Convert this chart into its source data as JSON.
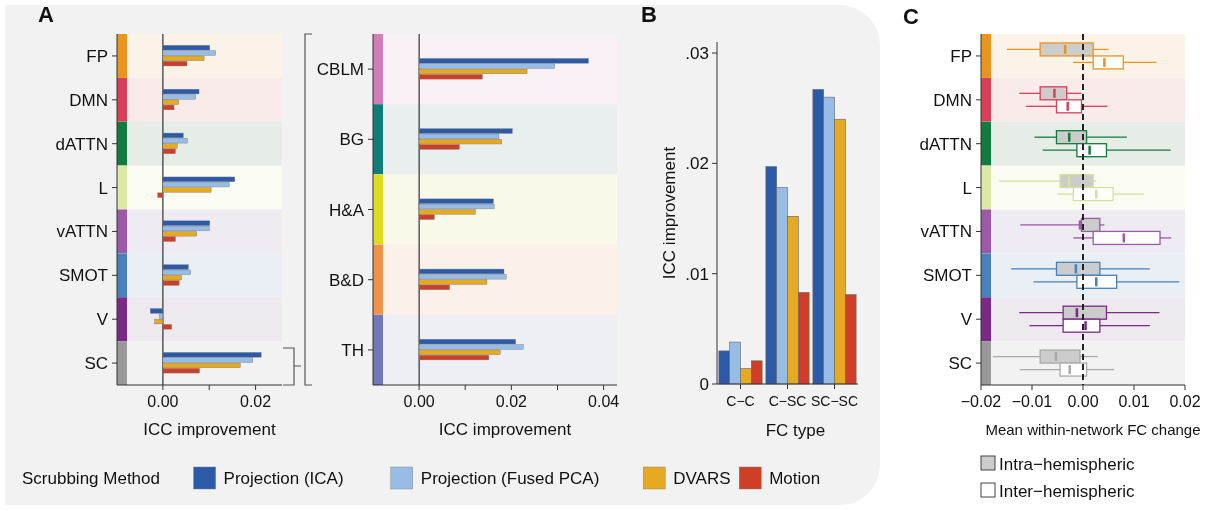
{
  "chart_data": [
    {
      "type": "bar",
      "title": "A",
      "orientation": "horizontal",
      "categories": [
        "FP",
        "DMN",
        "dATTN",
        "L",
        "vATTN",
        "SMOT",
        "V",
        "SC"
      ],
      "xlabel": "ICC improvement",
      "xlim": [
        -0.0099,
        0.0257
      ],
      "xticks": [
        {
          "value": 0,
          "label": "0.00"
        },
        {
          "value": 0.01,
          "label": null
        },
        {
          "value": 0.02,
          "label": "0.02"
        }
      ],
      "legend": "bottom",
      "legend_title": "Scrubbing Method",
      "ref_lines": [
        {
          "axis": "x",
          "value": 0,
          "line_style": "solid",
          "color": "#333333"
        }
      ],
      "series": [
        {
          "name": "Projection (ICA)",
          "color": "#2b5aa8",
          "values": [
            0.0101,
            0.0078,
            0.0044,
            0.0155,
            0.0101,
            0.0055,
            -0.0027,
            0.0212
          ]
        },
        {
          "name": "Projection (Fused PCA)",
          "color": "#97bde6",
          "values": [
            0.0114,
            0.0071,
            0.0053,
            0.0143,
            0.01,
            0.006,
            -0.0008,
            0.0194
          ]
        },
        {
          "name": "DVARS",
          "color": "#e6a922",
          "values": [
            0.0089,
            0.0034,
            0.0031,
            0.0104,
            0.0073,
            0.004,
            -0.0018,
            0.0167
          ]
        },
        {
          "name": "Motion",
          "color": "#cf3f27",
          "values": [
            0.0052,
            0.0024,
            0.0027,
            -0.0011,
            0.0027,
            0.0035,
            0.0019,
            0.0079
          ]
        }
      ]
    },
    {
      "type": "bar",
      "orientation": "horizontal",
      "categories": [
        "CBLM",
        "BG",
        "H&A",
        "B&D",
        "TH"
      ],
      "xlabel": "ICC improvement",
      "xlim": [
        -0.01,
        0.0429
      ],
      "xticks": [
        {
          "value": 0,
          "label": "0.00"
        },
        {
          "value": 0.01,
          "label": null
        },
        {
          "value": 0.02,
          "label": "0.02"
        },
        {
          "value": 0.03,
          "label": null
        },
        {
          "value": 0.04,
          "label": "0.04"
        }
      ],
      "ref_lines": [
        {
          "axis": "x",
          "value": 0,
          "line_style": "solid",
          "color": "#333333"
        }
      ],
      "series": [
        {
          "color": "#2b5aa8",
          "values": [
            0.0367,
            0.0202,
            0.0161,
            0.0184,
            0.0209
          ]
        },
        {
          "color": "#97bde6",
          "values": [
            0.0294,
            0.0173,
            0.0163,
            0.0189,
            0.0226
          ]
        },
        {
          "color": "#e6a922",
          "values": [
            0.0234,
            0.0179,
            0.0122,
            0.0147,
            0.0176
          ]
        },
        {
          "color": "#cf3f27",
          "values": [
            0.0137,
            0.0087,
            0.0033,
            0.0066,
            0.0151
          ]
        }
      ]
    },
    {
      "type": "bar",
      "title": "B",
      "categories": [
        "C−C",
        "C−SC",
        "SC−SC"
      ],
      "xlabel": "FC type",
      "ylabel": "ICC improvement",
      "ylim": [
        0,
        0.031
      ],
      "yticks": [
        {
          "value": 0,
          "label": "0"
        },
        {
          "value": 0.01,
          "label": ".01"
        },
        {
          "value": 0.02,
          "label": ".02"
        },
        {
          "value": 0.03,
          "label": ".03"
        }
      ],
      "series": [
        {
          "color": "#2b5aa8",
          "values": [
            0.003,
            0.0197,
            0.0267
          ]
        },
        {
          "color": "#97bde6",
          "values": [
            0.0038,
            0.0178,
            0.026
          ]
        },
        {
          "color": "#e6a922",
          "values": [
            0.0014,
            0.0152,
            0.024
          ]
        },
        {
          "color": "#cf3f27",
          "values": [
            0.0021,
            0.0083,
            0.0081
          ]
        }
      ]
    },
    {
      "type": "box",
      "title": "C",
      "orientation": "horizontal",
      "categories": [
        "FP",
        "DMN",
        "dATTN",
        "L",
        "vATTN",
        "SMOT",
        "V",
        "SC"
      ],
      "xlabel": "Mean within-network FC change",
      "xlim": [
        -0.02,
        0.02
      ],
      "xticks": [
        {
          "value": -0.02,
          "label": "−0.02"
        },
        {
          "value": -0.01,
          "label": "−0.01"
        },
        {
          "value": 0,
          "label": "0.00"
        },
        {
          "value": 0.01,
          "label": "0.01"
        },
        {
          "value": 0.02,
          "label": "0.02"
        }
      ],
      "legend": "bottom left",
      "ref_lines": [
        {
          "axis": "x",
          "value": 0,
          "line_style": "dashed",
          "color": "#222222"
        }
      ],
      "series": [
        {
          "name": "Intra−hemispheric",
          "color": "#cccccc",
          "colors": [
            "#e8951f",
            "#d6405a",
            "#137b3f",
            "#d4e29a",
            "#9a5aa8",
            "#4682b8",
            "#7a2a86",
            "#aaaaaa"
          ],
          "boxes": [
            {
              "low": -0.0149,
              "q1": -0.0084,
              "median": -0.0035,
              "q3": 0.002,
              "high": 0.005
            },
            {
              "low": -0.0125,
              "q1": -0.0084,
              "median": -0.0056,
              "q3": -0.0032,
              "high": -0.0003
            },
            {
              "low": -0.0095,
              "q1": -0.0052,
              "median": -0.0027,
              "q3": 0.0007,
              "high": 0.0086
            },
            {
              "low": -0.0164,
              "q1": -0.0045,
              "median": -0.0027,
              "q3": 0.002,
              "high": 0.0026
            },
            {
              "low": -0.0123,
              "q1": -0.0003,
              "median": -0.0006,
              "q3": 0.0033,
              "high": 0.0042
            },
            {
              "low": -0.0141,
              "q1": -0.0052,
              "median": -0.0014,
              "q3": 0.0033,
              "high": 0.0131
            },
            {
              "low": -0.0125,
              "q1": -0.0039,
              "median": -0.0012,
              "q3": 0.0046,
              "high": 0.015
            },
            {
              "low": -0.0177,
              "q1": -0.0084,
              "median": -0.0053,
              "q3": -0.0006,
              "high": 0.0029
            }
          ]
        },
        {
          "name": "Inter−hemispheric",
          "color": "#ffffff",
          "colors": [
            "#e8951f",
            "#d6405a",
            "#137b3f",
            "#d4e29a",
            "#9a5aa8",
            "#4682b8",
            "#7a2a86",
            "#aaaaaa"
          ],
          "boxes": [
            {
              "low": -0.0019,
              "q1": 0.002,
              "median": 0.0042,
              "q3": 0.0079,
              "high": 0.0144
            },
            {
              "low": -0.0112,
              "q1": -0.0052,
              "median": -0.003,
              "q3": -0.0003,
              "high": 0.0048
            },
            {
              "low": -0.0079,
              "q1": -0.0012,
              "median": 0.0013,
              "q3": 0.0046,
              "high": 0.0172
            },
            {
              "low": -0.005,
              "q1": -0.0019,
              "median": 0.0026,
              "q3": 0.0059,
              "high": 0.012
            },
            {
              "low": -0.0019,
              "q1": 0.002,
              "median": 0.008,
              "q3": 0.0151,
              "high": 0.0173
            },
            {
              "low": -0.0097,
              "q1": -0.0012,
              "median": 0.0026,
              "q3": 0.0066,
              "high": 0.0189
            },
            {
              "low": -0.0105,
              "q1": -0.0039,
              "median": 0.0005,
              "q3": 0.0033,
              "high": 0.0131
            },
            {
              "low": -0.0124,
              "q1": -0.0045,
              "median": -0.0026,
              "q3": 0.0007,
              "high": 0.0061
            }
          ]
        }
      ]
    }
  ]
}
